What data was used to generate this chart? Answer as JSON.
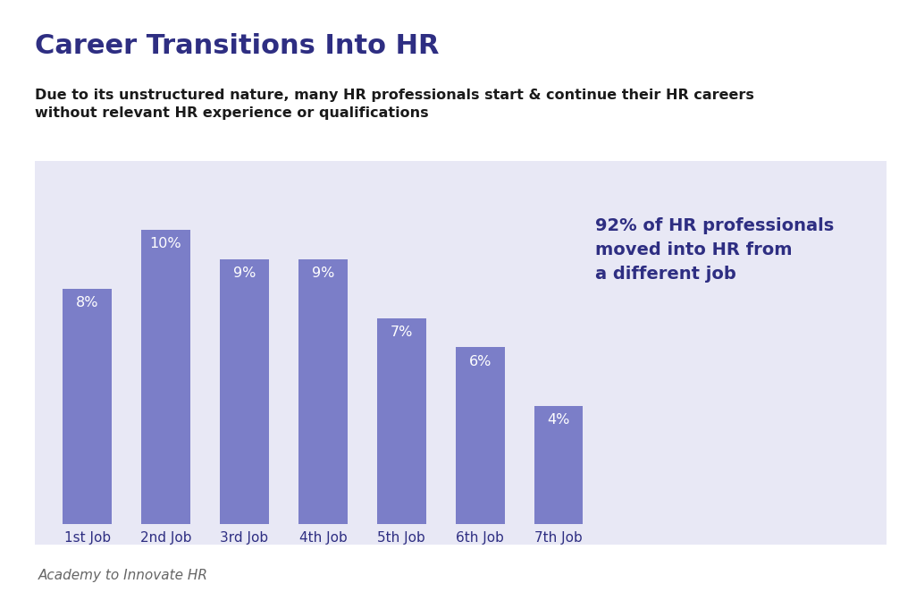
{
  "title": "Career Transitions Into HR",
  "subtitle": "Due to its unstructured nature, many HR professionals start & continue their HR careers\nwithout relevant HR experience or qualifications",
  "categories": [
    "1st Job",
    "2nd Job",
    "3rd Job",
    "4th Job",
    "5th Job",
    "6th Job",
    "7th Job"
  ],
  "values": [
    8,
    10,
    9,
    9,
    7,
    6,
    4
  ],
  "labels": [
    "8%",
    "10%",
    "9%",
    "9%",
    "7%",
    "6%",
    "4%"
  ],
  "bar_color": "#7B7EC8",
  "bg_color": "#E8E8F5",
  "outer_bg": "#FFFFFF",
  "title_color": "#2E2E82",
  "subtitle_color": "#1A1A1A",
  "annotation_text": "92% of HR professionals\nmoved into HR from\na different job",
  "annotation_color": "#2E2E82",
  "footer_text": "Academy to Innovate HR",
  "footer_color": "#666666",
  "bar_label_color": "#FFFFFF",
  "xticklabel_color": "#2E2E82",
  "divider_color": "#BBBBCC",
  "ylim": [
    0,
    11.5
  ],
  "bar_width": 0.62
}
